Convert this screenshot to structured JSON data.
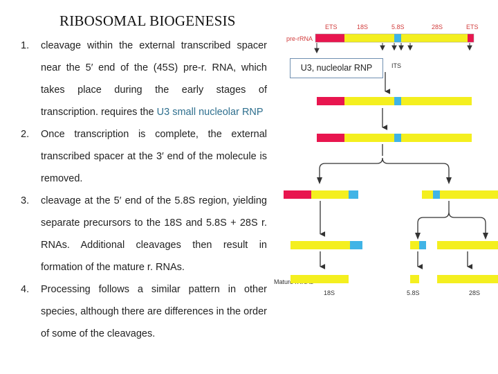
{
  "title": "RIBOSOMAL BIOGENESIS",
  "items": [
    {
      "num": "1.",
      "text_before": "cleavage within the external transcribed spacer near the 5′ end of the (45S) pre-r. RNA, which takes place during the early stages of transcription. requires the ",
      "highlight": "U3 small nucleolar RNP",
      "text_after": ""
    },
    {
      "num": "2.",
      "text": "Once transcription is complete, the external transcribed spacer at the 3′ end of the molecule is removed."
    },
    {
      "num": "3.",
      "text": "cleavage at the 5′ end of the 5.8S region, yielding separate precursors to the 18S and 5.8S + 28S r. RNAs. Additional cleavages then result in formation of the mature r. RNAs."
    },
    {
      "num": "4.",
      "text": "Processing follows a similar pattern in other species, although there are differences in the order of some of the cleavages."
    }
  ],
  "diagram": {
    "callout": "U3, nucleolar RNP",
    "labels": {
      "pre_rrna": "pre-rRNA",
      "ets_left": "ETS",
      "s18_top": "18S",
      "s58_top": "5.8S",
      "s28_top": "28S",
      "ets_right": "ETS",
      "its": "ITS",
      "mature": "Mature rRNAs",
      "s18_bottom": "18S",
      "s58_bottom": "5.8S",
      "s28_bottom": "28S"
    },
    "colors": {
      "ets": "#e8164f",
      "rrna": "#f4ef1f",
      "s58": "#40b4e6",
      "arrow": "#333333",
      "label": "#d13b3b"
    }
  }
}
